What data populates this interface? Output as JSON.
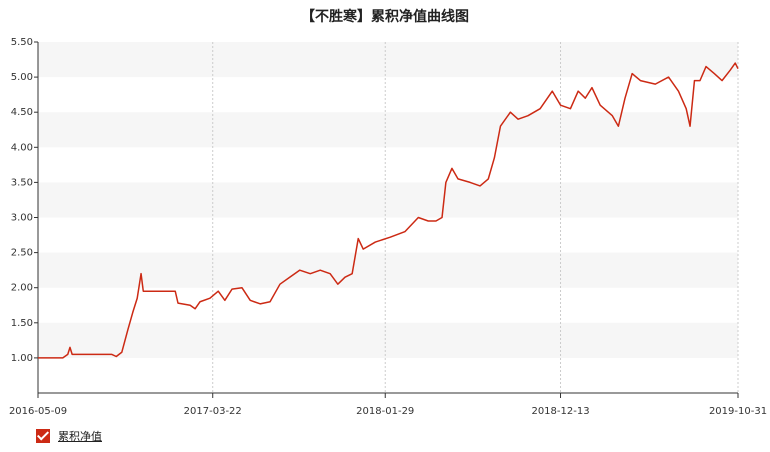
{
  "chart_data": {
    "type": "line",
    "title": "【不胜寒】累积净值曲线图",
    "x": [
      "2016-05-09",
      "2016-06-23",
      "2016-07-02",
      "2016-07-06",
      "2016-07-10",
      "2016-07-15",
      "2016-09-20",
      "2016-09-28",
      "2016-10-08",
      "2016-10-19",
      "2016-10-28",
      "2016-11-05",
      "2016-11-12",
      "2016-11-16",
      "2017-01-13",
      "2017-01-18",
      "2017-02-09",
      "2017-02-18",
      "2017-02-27",
      "2017-03-17",
      "2017-04-01",
      "2017-04-13",
      "2017-04-26",
      "2017-05-14",
      "2017-05-29",
      "2017-06-16",
      "2017-07-04",
      "2017-07-22",
      "2017-08-09",
      "2017-08-27",
      "2017-09-15",
      "2017-10-03",
      "2017-10-21",
      "2017-11-04",
      "2017-11-17",
      "2017-11-30",
      "2017-12-11",
      "2017-12-20",
      "2018-01-11",
      "2018-02-07",
      "2018-03-06",
      "2018-03-30",
      "2018-04-17",
      "2018-05-01",
      "2018-05-12",
      "2018-05-19",
      "2018-05-30",
      "2018-06-10",
      "2018-07-02",
      "2018-07-20",
      "2018-08-04",
      "2018-08-15",
      "2018-08-26",
      "2018-09-13",
      "2018-09-27",
      "2018-10-15",
      "2018-11-06",
      "2018-11-28",
      "2018-12-13",
      "2018-12-31",
      "2019-01-14",
      "2019-01-27",
      "2019-02-08",
      "2019-02-23",
      "2019-03-17",
      "2019-03-28",
      "2019-04-09",
      "2019-04-22",
      "2019-05-07",
      "2019-06-03",
      "2019-06-27",
      "2019-07-15",
      "2019-07-29",
      "2019-08-05",
      "2019-08-13",
      "2019-08-23",
      "2019-09-03",
      "2019-09-18",
      "2019-10-02",
      "2019-10-17",
      "2019-10-26",
      "2019-10-31"
    ],
    "series": [
      {
        "name": "累积净值",
        "color": "#cc2a14",
        "values": [
          1.0,
          1.0,
          1.05,
          1.15,
          1.05,
          1.05,
          1.05,
          1.02,
          1.08,
          1.4,
          1.65,
          1.85,
          2.2,
          1.95,
          1.95,
          1.78,
          1.75,
          1.7,
          1.8,
          1.85,
          1.95,
          1.82,
          1.98,
          2.0,
          1.82,
          1.77,
          1.8,
          2.05,
          2.15,
          2.25,
          2.2,
          2.25,
          2.2,
          2.05,
          2.15,
          2.2,
          2.7,
          2.55,
          2.65,
          2.72,
          2.8,
          3.0,
          2.95,
          2.95,
          3.0,
          3.5,
          3.7,
          3.55,
          3.5,
          3.45,
          3.55,
          3.85,
          4.3,
          4.5,
          4.4,
          4.45,
          4.55,
          4.8,
          4.6,
          4.55,
          4.8,
          4.7,
          4.85,
          4.6,
          4.45,
          4.3,
          4.7,
          5.05,
          4.95,
          4.9,
          5.0,
          4.8,
          4.55,
          4.3,
          4.95,
          4.95,
          5.15,
          5.05,
          4.95,
          5.1,
          5.2,
          5.12
        ]
      }
    ],
    "xlim": [
      "2016-05-09",
      "2019-10-31"
    ],
    "xticks": [
      "2016-05-09",
      "2017-03-22",
      "2018-01-29",
      "2018-12-13",
      "2019-10-31"
    ],
    "ylim": [
      0.5,
      5.5
    ],
    "yticks": [
      {
        "value": 1,
        "label": "1.00"
      },
      {
        "value": 1.5,
        "label": "1.50"
      },
      {
        "value": 2,
        "label": "2.00"
      },
      {
        "value": 2.5,
        "label": "2.50"
      },
      {
        "value": 3,
        "label": "3.00"
      },
      {
        "value": 3.5,
        "label": "3.50"
      },
      {
        "value": 4,
        "label": "4.00"
      },
      {
        "value": 4.5,
        "label": "4.50"
      },
      {
        "value": 5,
        "label": "5.00"
      },
      {
        "value": 5.5,
        "label": "5.50"
      }
    ],
    "grid": true
  }
}
